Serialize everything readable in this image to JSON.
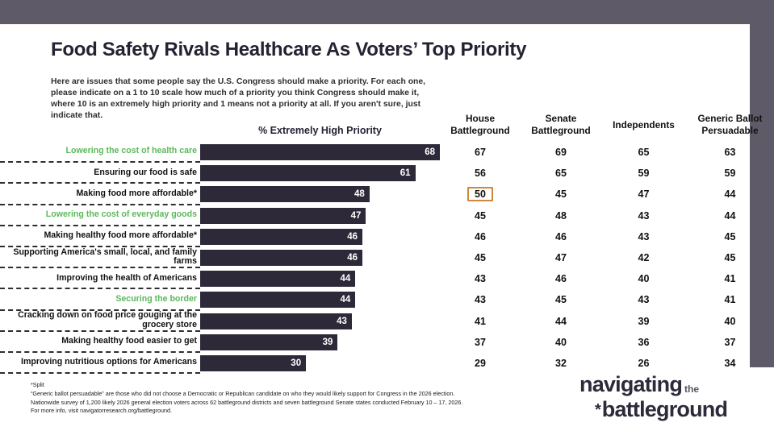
{
  "colors": {
    "header_bar": "#5E5A68",
    "bar": "#2D2939",
    "green": "#5CB85C",
    "orange_box": "#D0883C",
    "title_text": "#262233",
    "logo_text": "#2D2A3A"
  },
  "title": "Food Safety Rivals Healthcare As Voters’ Top Priority",
  "intro": "Here are issues that some people say the U.S. Congress should make a priority. For each one, please indicate on a 1 to 10 scale how much of a priority you think Congress should make it, where 10 is an extremely high priority and 1 means not a priority at all. If you aren't sure, just indicate that.",
  "chart_data": {
    "type": "bar",
    "orientation": "horizontal",
    "value_axis_label": "% Extremely High Priority",
    "x_max": 70,
    "grid": false,
    "categories": [
      "Lowering the cost of health care",
      "Ensuring our food is safe",
      "Making food more affordable*",
      "Lowering the cost of everyday goods",
      "Making healthy food more affordable*",
      "Supporting America's small, local, and family farms",
      "Improving the health of Americans",
      "Securing the border",
      "Cracking down on food price gouging at the grocery store",
      "Making healthy food easier to get",
      "Improving nutritious options for Americans"
    ],
    "green_category_indexes": [
      0,
      3,
      7
    ],
    "bar_values": [
      68,
      61,
      48,
      47,
      46,
      46,
      44,
      44,
      43,
      39,
      30
    ],
    "column_labels": [
      "House\nBattleground",
      "Senate\nBattleground",
      "Independents",
      "Generic Ballot\nPersuadable"
    ],
    "series": [
      {
        "name": "House Battleground",
        "values": [
          67,
          56,
          50,
          45,
          46,
          45,
          43,
          43,
          41,
          37,
          29
        ]
      },
      {
        "name": "Senate Battleground",
        "values": [
          69,
          65,
          45,
          48,
          46,
          47,
          46,
          45,
          44,
          40,
          32
        ]
      },
      {
        "name": "Independents",
        "values": [
          65,
          59,
          47,
          43,
          43,
          42,
          40,
          43,
          39,
          36,
          26
        ]
      },
      {
        "name": "Generic Ballot Persuadable",
        "values": [
          63,
          59,
          44,
          44,
          45,
          45,
          41,
          41,
          40,
          37,
          34
        ]
      }
    ],
    "highlight": {
      "series": "House Battleground",
      "category": "Making food more affordable*",
      "value": 50
    }
  },
  "footnotes": [
    "*Split",
    "“Generic ballot persuadable” are those who did not choose a Democratic or Republican candidate on who they would likely support for Congress in the 2026 election.",
    "Nationwide survey of 1,200 likely 2026 general election voters across 62 battleground districts and seven battleground Senate states conducted February 10 – 17, 2026.",
    "For more info, visit navigatorresearch.org/battleground."
  ],
  "logo": {
    "word1": "navigating",
    "word2": "the",
    "asterisk": "*",
    "word3": "battleground"
  }
}
